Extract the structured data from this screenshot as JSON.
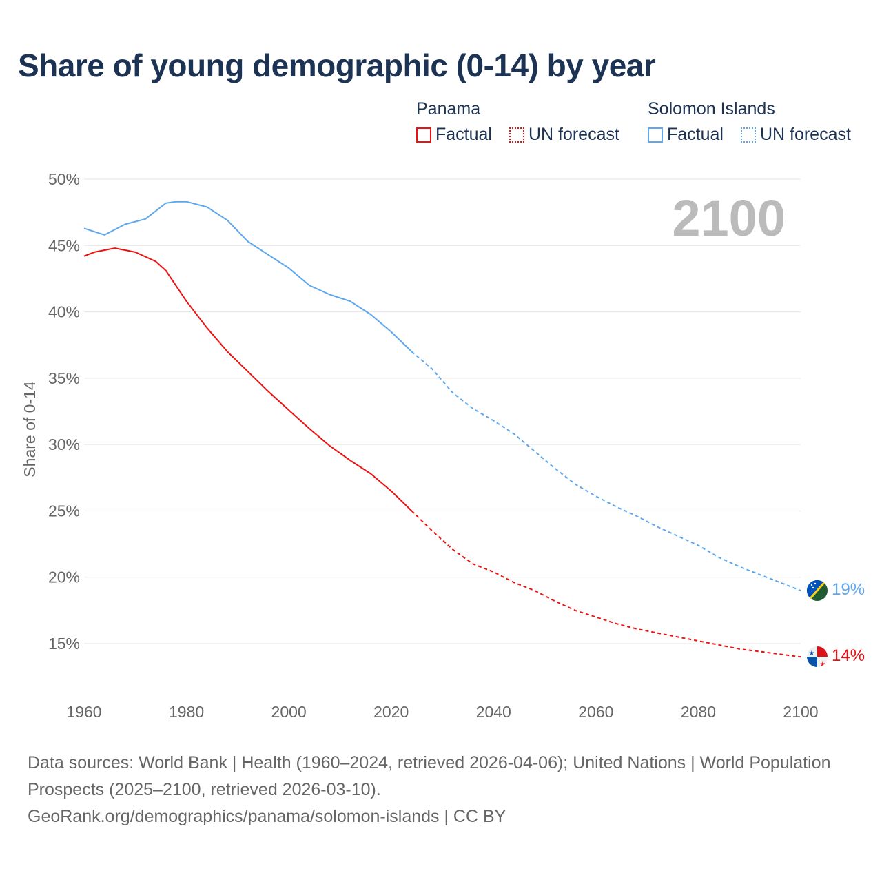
{
  "title": "Share of young demographic (0-14) by year",
  "legend": [
    {
      "country": "Panama",
      "color": "#ee1111",
      "factual": "Factual",
      "forecast": "UN forecast"
    },
    {
      "country": "Solomon Islands",
      "color": "#5ea7ee",
      "factual": "Factual",
      "forecast": "UN forecast"
    }
  ],
  "year_label": "2100",
  "end_labels": {
    "panama": "14%",
    "solomon": "19%"
  },
  "source": {
    "line1": "Data sources: World Bank | Health (1960–2024, retrieved 2026-04-06); United Nations | World Population Prospects (2025–2100, retrieved 2026-03-10).",
    "line2": "GeoRank.org/demographics/panama/solomon-islands | CC BY"
  },
  "chart_data": {
    "type": "line",
    "title": "Share of young demographic (0-14) by year",
    "xlabel": "",
    "ylabel": "Share of 0-14",
    "xlim": [
      1960,
      2100
    ],
    "ylim": [
      12,
      50
    ],
    "x_ticks": [
      "1960",
      "1980",
      "2000",
      "2020",
      "2040",
      "2060",
      "2080",
      "2100"
    ],
    "y_ticks": [
      "15%",
      "20%",
      "25%",
      "30%",
      "35%",
      "40%",
      "45%",
      "50%"
    ],
    "grid": true,
    "factual_end_year": 2024,
    "series": [
      {
        "name": "Panama",
        "color": "#ee1111",
        "x": [
          1960,
          1962,
          1966,
          1970,
          1974,
          1976,
          1980,
          1984,
          1988,
          1992,
          1996,
          2000,
          2004,
          2008,
          2012,
          2016,
          2020,
          2024,
          2028,
          2032,
          2036,
          2040,
          2044,
          2048,
          2052,
          2056,
          2060,
          2064,
          2068,
          2072,
          2076,
          2080,
          2084,
          2088,
          2092,
          2096,
          2100
        ],
        "values": [
          44.2,
          44.5,
          44.8,
          44.5,
          43.8,
          43.1,
          40.8,
          38.8,
          37.0,
          35.5,
          34.0,
          32.6,
          31.2,
          29.9,
          28.8,
          27.8,
          26.5,
          25.0,
          23.5,
          22.1,
          21.0,
          20.4,
          19.6,
          19.0,
          18.2,
          17.5,
          17.0,
          16.5,
          16.1,
          15.8,
          15.5,
          15.2,
          14.9,
          14.6,
          14.4,
          14.2,
          14.0
        ]
      },
      {
        "name": "Solomon Islands",
        "color": "#5ea7ee",
        "x": [
          1960,
          1964,
          1968,
          1972,
          1976,
          1978,
          1980,
          1984,
          1988,
          1992,
          1996,
          2000,
          2004,
          2008,
          2012,
          2016,
          2020,
          2024,
          2028,
          2032,
          2036,
          2040,
          2044,
          2048,
          2052,
          2056,
          2060,
          2064,
          2068,
          2072,
          2076,
          2080,
          2084,
          2088,
          2092,
          2096,
          2100
        ],
        "values": [
          46.3,
          45.8,
          46.6,
          47.0,
          48.2,
          48.3,
          48.3,
          47.9,
          46.9,
          45.3,
          44.3,
          43.3,
          42.0,
          41.3,
          40.8,
          39.8,
          38.5,
          37.0,
          35.7,
          33.9,
          32.7,
          31.8,
          30.8,
          29.5,
          28.2,
          27.0,
          26.1,
          25.3,
          24.6,
          23.8,
          23.1,
          22.4,
          21.5,
          20.8,
          20.2,
          19.6,
          19.0
        ]
      }
    ]
  }
}
